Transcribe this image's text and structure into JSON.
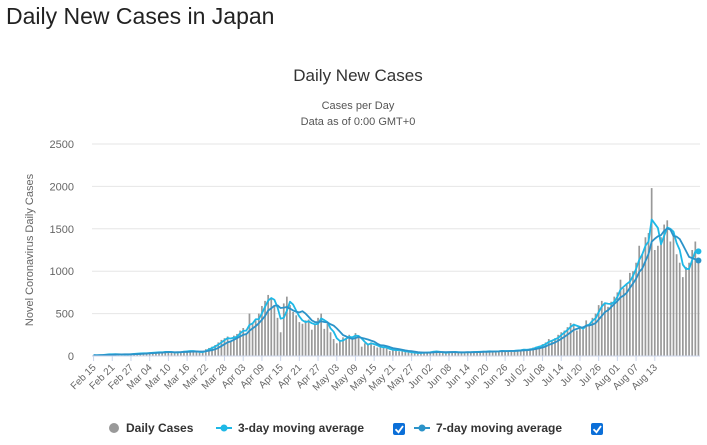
{
  "page": {
    "heading": "Daily New Cases in Japan"
  },
  "chart_data": {
    "type": "bar",
    "title": "Daily New Cases",
    "subtitle_line1": "Cases per Day",
    "subtitle_line2": "Data as of 0:00 GMT+0",
    "ylabel": "Novel Coronavirus Daily Cases",
    "xlabel": "",
    "ylim": [
      0,
      2500
    ],
    "yticks": [
      0,
      500,
      1000,
      1500,
      2000,
      2500
    ],
    "grid": true,
    "legend_position": "bottom",
    "x_tick_labels": [
      "Feb 15",
      "Feb 21",
      "Feb 27",
      "Mar 04",
      "Mar 10",
      "Mar 16",
      "Mar 22",
      "Mar 28",
      "Apr 03",
      "Apr 09",
      "Apr 15",
      "Apr 21",
      "Apr 27",
      "May 03",
      "May 09",
      "May 15",
      "May 21",
      "May 27",
      "Jun 02",
      "Jun 08",
      "Jun 14",
      "Jun 20",
      "Jun 26",
      "Jul 02",
      "Jul 08",
      "Jul 14",
      "Jul 20",
      "Jul 26",
      "Aug 01",
      "Aug 07",
      "Aug 13"
    ],
    "x_tick_every_days": 6,
    "x_first_date": "Feb 15",
    "series": [
      {
        "name": "Daily Cases",
        "type": "bar",
        "color": "#999999",
        "values": [
          10,
          8,
          12,
          15,
          20,
          25,
          18,
          22,
          20,
          15,
          18,
          20,
          25,
          30,
          28,
          32,
          35,
          30,
          40,
          45,
          38,
          50,
          42,
          55,
          48,
          40,
          38,
          45,
          50,
          60,
          55,
          62,
          58,
          45,
          38,
          55,
          80,
          95,
          110,
          130,
          160,
          190,
          210,
          230,
          180,
          240,
          260,
          300,
          330,
          270,
          500,
          380,
          420,
          500,
          590,
          650,
          720,
          680,
          590,
          450,
          280,
          620,
          700,
          600,
          520,
          480,
          400,
          380,
          420,
          430,
          310,
          380,
          450,
          500,
          320,
          380,
          280,
          200,
          150,
          180,
          220,
          210,
          250,
          200,
          270,
          240,
          110,
          150,
          140,
          160,
          120,
          100,
          110,
          100,
          90,
          60,
          70,
          80,
          55,
          60,
          50,
          45,
          40,
          35,
          30,
          40,
          45,
          38,
          50,
          60,
          55,
          35,
          42,
          40,
          45,
          50,
          48,
          40,
          38,
          50,
          45,
          40,
          55,
          50,
          45,
          60,
          52,
          55,
          50,
          58,
          60,
          62,
          55,
          60,
          65,
          58,
          70,
          75,
          80,
          65,
          90,
          100,
          110,
          120,
          140,
          160,
          200,
          180,
          210,
          250,
          280,
          300,
          340,
          390,
          380,
          300,
          350,
          310,
          420,
          380,
          450,
          500,
          600,
          650,
          620,
          580,
          640,
          700,
          750,
          900,
          800,
          850,
          980,
          1000,
          1100,
          1300,
          1200,
          1400,
          1450,
          1980,
          1250,
          1300,
          1400,
          1550,
          1600,
          1350,
          1450,
          1200,
          1100,
          930,
          1050,
          1100,
          1250,
          1350,
          1100
        ]
      },
      {
        "name": "3-day moving average",
        "type": "line",
        "color": "#1fb8e6",
        "checked": true
      },
      {
        "name": "7-day moving average",
        "type": "line",
        "color": "#2b93c9",
        "checked": true
      }
    ]
  }
}
